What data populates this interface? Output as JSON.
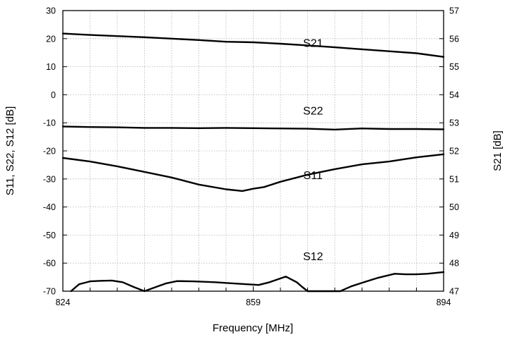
{
  "chart_data": {
    "type": "line",
    "xlabel": "Frequency [MHz]",
    "ylabel_left": "S11, S22, S12 [dB]",
    "ylabel_right": "S21 [dB]",
    "xlim": [
      824,
      894
    ],
    "ylim_left": [
      -70,
      30
    ],
    "ylim_right": [
      47,
      57
    ],
    "x_ticks": [
      824,
      859,
      894
    ],
    "x_minor_step": 5,
    "y_ticks_left": [
      30,
      20,
      10,
      0,
      -10,
      -20,
      -30,
      -40,
      -50,
      -60,
      -70
    ],
    "y_ticks_right": [
      57,
      56,
      55,
      54,
      53,
      52,
      51,
      50,
      49,
      48,
      47
    ],
    "grid": true,
    "series": [
      {
        "name": "S21",
        "axis": "right",
        "label_at": [
          870,
          55.7
        ],
        "x": [
          824,
          829,
          834,
          839,
          844,
          849,
          854,
          859,
          864,
          869,
          874,
          879,
          884,
          889,
          894
        ],
        "y": [
          56.18,
          56.13,
          56.09,
          56.05,
          56.0,
          55.95,
          55.89,
          55.87,
          55.82,
          55.76,
          55.69,
          55.62,
          55.55,
          55.48,
          55.35
        ]
      },
      {
        "name": "S22",
        "axis": "left",
        "label_at": [
          870,
          -7
        ],
        "x": [
          824,
          829,
          834,
          839,
          844,
          849,
          854,
          859,
          864,
          869,
          874,
          879,
          884,
          889,
          894
        ],
        "y": [
          -11.3,
          -11.5,
          -11.6,
          -11.8,
          -11.8,
          -11.9,
          -11.8,
          -11.9,
          -12.0,
          -12.1,
          -12.4,
          -12.0,
          -12.2,
          -12.2,
          -12.3
        ]
      },
      {
        "name": "S11",
        "axis": "left",
        "label_at": [
          870,
          -30
        ],
        "x": [
          824,
          829,
          834,
          839,
          844,
          849,
          854,
          857,
          859,
          861,
          864,
          869,
          874,
          879,
          884,
          889,
          894
        ],
        "y": [
          -22.5,
          -23.8,
          -25.5,
          -27.5,
          -29.5,
          -32.0,
          -33.7,
          -34.3,
          -33.5,
          -32.9,
          -31.0,
          -28.5,
          -26.5,
          -24.8,
          -23.8,
          -22.3,
          -21.2
        ]
      },
      {
        "name": "S12",
        "axis": "left",
        "label_at": [
          870,
          -59
        ],
        "x": [
          825.5,
          827,
          829,
          831,
          833,
          835,
          837,
          839,
          841,
          843,
          845,
          848,
          852,
          856,
          860,
          862,
          865,
          867,
          868,
          869,
          871,
          873,
          875,
          877,
          879,
          882,
          885,
          887,
          889,
          891,
          894
        ],
        "y": [
          -70,
          -67.5,
          -66.5,
          -66.3,
          -66.2,
          -66.8,
          -68.5,
          -70,
          -68.6,
          -67.2,
          -66.4,
          -66.5,
          -66.8,
          -67.3,
          -67.8,
          -66.8,
          -64.8,
          -66.8,
          -68.5,
          -70,
          -70,
          -70,
          -70,
          -68.3,
          -67.0,
          -65.2,
          -63.8,
          -64.0,
          -64.0,
          -63.8,
          -63.2
        ]
      }
    ]
  }
}
